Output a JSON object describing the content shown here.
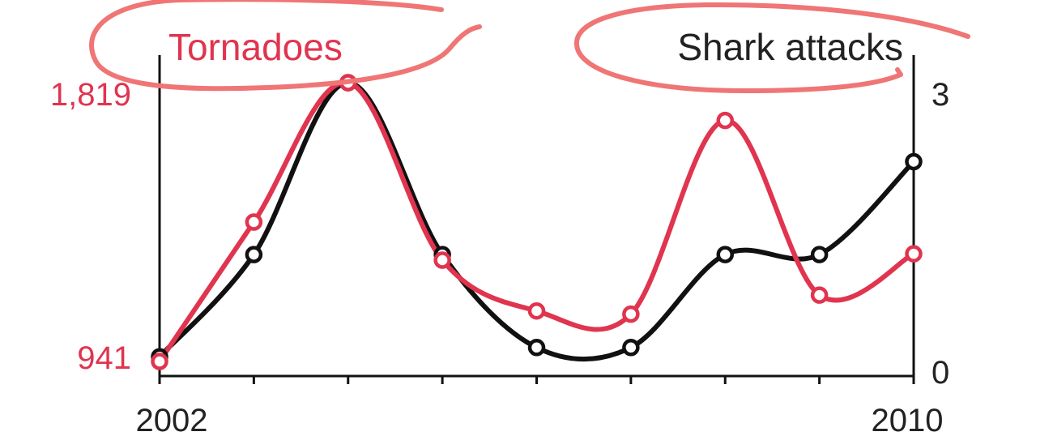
{
  "colors": {
    "tornado": "#e0344f",
    "shark": "#111111",
    "axis": "#111111",
    "annotation": "#f07575"
  },
  "chart_data": {
    "type": "line",
    "x": [
      2002,
      2003,
      2004,
      2005,
      2006,
      2007,
      2008,
      2009,
      2010
    ],
    "xlabels": [
      "2002",
      "2010"
    ],
    "series": [
      {
        "name": "Tornadoes",
        "axis": "left",
        "ylim": [
          941,
          1819
        ],
        "tick_labels": [
          "1,819",
          "941"
        ],
        "values": [
          941,
          1380,
          1819,
          1260,
          1100,
          1090,
          1700,
          1150,
          1280
        ]
      },
      {
        "name": "Shark attacks",
        "axis": "right",
        "ylim": [
          0,
          3
        ],
        "tick_labels": [
          "3",
          "0"
        ],
        "values": [
          0.05,
          1.15,
          3.0,
          1.15,
          0.15,
          0.15,
          1.15,
          1.15,
          2.15
        ]
      }
    ],
    "grid": false,
    "annotations": [
      "hand-drawn circle around Tornadoes label",
      "hand-drawn circle around Shark attacks label"
    ]
  }
}
